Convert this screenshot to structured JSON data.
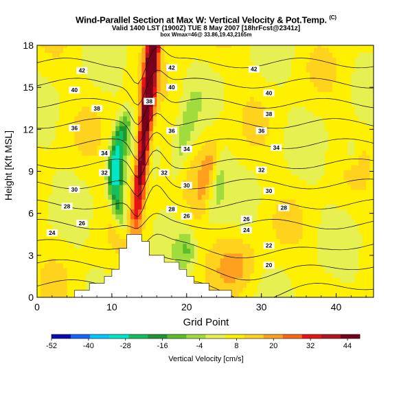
{
  "chart_data": {
    "type": "heatmap",
    "title": "Wind-Parallel Section at Max W: Vertical Velocity & Pot.Temp.",
    "title_mark": "(C)",
    "subtitle_1": "Valid 1400 LST (1900Z) TUE 8 May 2007 [18hrFcst@2341z]",
    "subtitle_2": "box Wmax=46@ 33.86,19.43,2165m",
    "xlabel": "Grid Point",
    "ylabel": "Height [Kft MSL]",
    "colorbar_label": "Vertical Velocity [cm/s]",
    "xlim": [
      0,
      45
    ],
    "ylim": [
      0,
      18
    ],
    "x_ticks": [
      0,
      10,
      20,
      30,
      40
    ],
    "y_ticks": [
      0,
      3,
      6,
      9,
      12,
      15,
      18
    ],
    "colorbar_ticks": [
      -52,
      -40,
      -28,
      -16,
      -4,
      8,
      20,
      32,
      44
    ],
    "colorbar_range": [
      -52,
      48
    ],
    "colorbar_colors": [
      "#0a0ab4",
      "#1464ff",
      "#00c8ff",
      "#00e6c8",
      "#14be5a",
      "#1e9632",
      "#5abe28",
      "#a0dc3c",
      "#e6f050",
      "#fff000",
      "#ffd21e",
      "#ffa01e",
      "#ff6414",
      "#e61414",
      "#b4141e",
      "#78001e"
    ],
    "contour_label": "Potential temperature (C)",
    "contour_values": [
      20,
      22,
      24,
      26,
      28,
      30,
      32,
      34,
      36,
      38,
      40,
      42
    ],
    "contour_labels": [
      {
        "value": "42",
        "x": 6,
        "y": 16.2
      },
      {
        "value": "42",
        "x": 18,
        "y": 16.4
      },
      {
        "value": "42",
        "x": 29,
        "y": 16.3
      },
      {
        "value": "40",
        "x": 5,
        "y": 14.8
      },
      {
        "value": "40",
        "x": 18,
        "y": 15.0
      },
      {
        "value": "40",
        "x": 31,
        "y": 14.6
      },
      {
        "value": "38",
        "x": 8,
        "y": 13.5
      },
      {
        "value": "38",
        "x": 15,
        "y": 14.0
      },
      {
        "value": "38",
        "x": 31,
        "y": 13.1
      },
      {
        "value": "36",
        "x": 5,
        "y": 12.1
      },
      {
        "value": "36",
        "x": 18,
        "y": 11.9
      },
      {
        "value": "36",
        "x": 30,
        "y": 11.9
      },
      {
        "value": "34",
        "x": 9,
        "y": 10.3
      },
      {
        "value": "34",
        "x": 20,
        "y": 10.6
      },
      {
        "value": "34",
        "x": 32,
        "y": 10.7
      },
      {
        "value": "32",
        "x": 9,
        "y": 8.9
      },
      {
        "value": "32",
        "x": 17,
        "y": 8.9
      },
      {
        "value": "32",
        "x": 30,
        "y": 9.1
      },
      {
        "value": "30",
        "x": 5,
        "y": 7.7
      },
      {
        "value": "30",
        "x": 20,
        "y": 8.0
      },
      {
        "value": "30",
        "x": 31,
        "y": 7.6
      },
      {
        "value": "28",
        "x": 4,
        "y": 6.5
      },
      {
        "value": "28",
        "x": 18,
        "y": 6.3
      },
      {
        "value": "28",
        "x": 33,
        "y": 6.4
      },
      {
        "value": "26",
        "x": 6,
        "y": 5.3
      },
      {
        "value": "26",
        "x": 20,
        "y": 5.8
      },
      {
        "value": "26",
        "x": 28,
        "y": 5.6
      },
      {
        "value": "24",
        "x": 2,
        "y": 4.6
      },
      {
        "value": "24",
        "x": 28,
        "y": 4.8
      },
      {
        "value": "22",
        "x": 31,
        "y": 3.7
      },
      {
        "value": "20",
        "x": 31,
        "y": 2.3
      }
    ],
    "terrain": [
      [
        0,
        0
      ],
      [
        5,
        0
      ],
      [
        5,
        0.5
      ],
      [
        7,
        0.5
      ],
      [
        7,
        1
      ],
      [
        9,
        1
      ],
      [
        9,
        1.5
      ],
      [
        10,
        1.5
      ],
      [
        10,
        2
      ],
      [
        11,
        2
      ],
      [
        11,
        3.5
      ],
      [
        12,
        3.5
      ],
      [
        12,
        4.5
      ],
      [
        14,
        4.5
      ],
      [
        14,
        4
      ],
      [
        15,
        4
      ],
      [
        15,
        3
      ],
      [
        17,
        3
      ],
      [
        17,
        2.5
      ],
      [
        19,
        2.5
      ],
      [
        19,
        2
      ],
      [
        20,
        2
      ],
      [
        20,
        1.5
      ],
      [
        21,
        1.5
      ],
      [
        21,
        1
      ],
      [
        23,
        1
      ],
      [
        23,
        0.5
      ],
      [
        26,
        0.5
      ],
      [
        26,
        0
      ]
    ],
    "updraft_core": {
      "max": 46,
      "x_bottom": 13,
      "x_top": 15.5,
      "y_bottom": 4,
      "y_top": 18
    },
    "downdraft_core": {
      "min": -34,
      "x_bottom": 12,
      "x_top": 12.5,
      "y_bottom": 4,
      "y_top": 14
    }
  }
}
